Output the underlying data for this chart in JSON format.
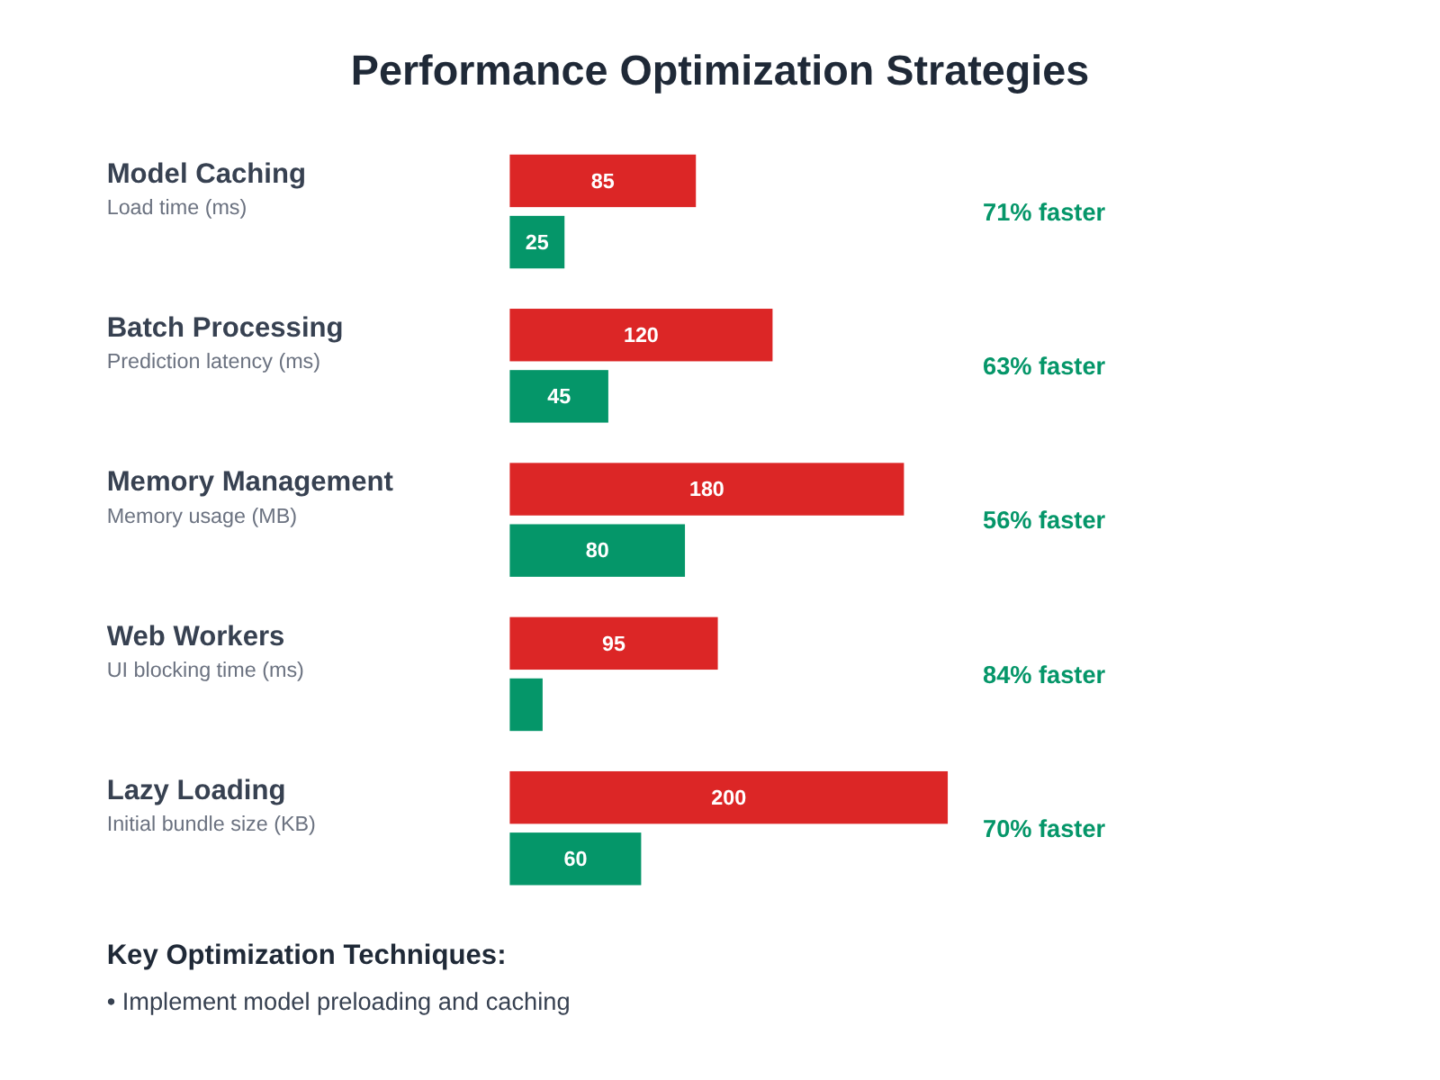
{
  "chart_data": {
    "type": "bar",
    "orientation": "horizontal",
    "title": "Performance Optimization Strategies",
    "categories": [
      "Model Caching\nLoad time (ms)",
      "Batch Processing\nPrediction latency (ms)",
      "Memory Management\nMemory usage (MB)",
      "Web Workers\nUI blocking time (ms)",
      "Lazy Loading\nInitial bundle size (KB)"
    ],
    "series": [
      {
        "color": "#dc2626",
        "values": [
          85,
          120,
          180,
          95,
          200
        ],
        "value_labels": [
          "85",
          "120",
          "180",
          "95",
          "200"
        ]
      },
      {
        "color": "#059669",
        "values": [
          25,
          45,
          80,
          15,
          60
        ],
        "value_labels": [
          "25",
          "45",
          "80",
          null,
          "60"
        ]
      }
    ],
    "annotations": [
      "71% faster",
      "63% faster",
      "56% faster",
      "84% faster",
      "70% faster",
      "Key Optimization Techniques:",
      "• Implement model preloading and caching"
    ]
  }
}
